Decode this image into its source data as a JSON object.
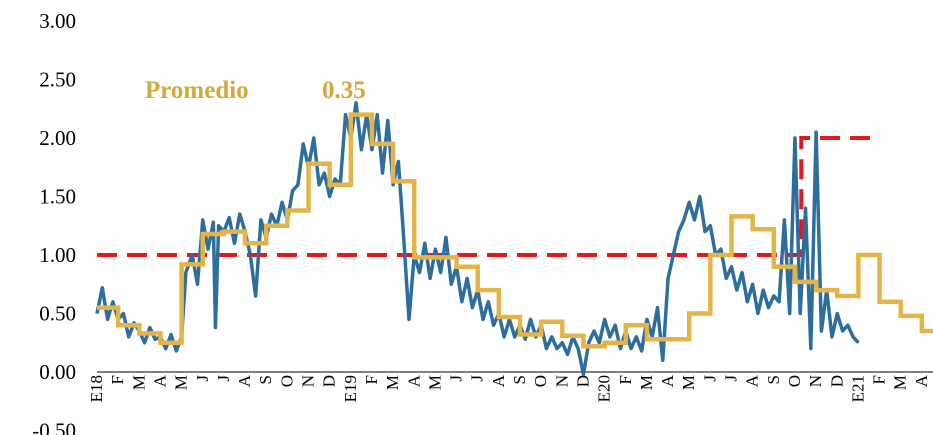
{
  "chart_data": {
    "type": "line",
    "title": "",
    "xlabel": "",
    "ylabel": "",
    "ylim": [
      -0.5,
      3.0
    ],
    "yticks": [
      "-0.50",
      "0.00",
      "0.50",
      "1.00",
      "1.50",
      "2.00",
      "2.50",
      "3.00"
    ],
    "grid": false,
    "annotation": {
      "label": "Promedio",
      "value": "0.35",
      "color": "#D4A83A"
    },
    "colors": {
      "daily": "#2E6E9E",
      "monthly": "#E5B449",
      "threshold": "#E5191C"
    },
    "categories": [
      "E18",
      "F",
      "M",
      "A",
      "M",
      "J",
      "J",
      "A",
      "S",
      "O",
      "N",
      "D",
      "E19",
      "F",
      "M",
      "A",
      "M",
      "J",
      "J",
      "A",
      "S",
      "O",
      "N",
      "D",
      "E20",
      "F",
      "M",
      "A",
      "M",
      "J",
      "J",
      "A",
      "S",
      "O",
      "N",
      "D",
      "E21",
      "F",
      "M",
      "A"
    ],
    "series": [
      {
        "kind": "daily",
        "points": [
          [
            0.0,
            0.5
          ],
          [
            0.25,
            0.72
          ],
          [
            0.5,
            0.45
          ],
          [
            0.75,
            0.6
          ],
          [
            1.0,
            0.45
          ],
          [
            1.25,
            0.5
          ],
          [
            1.5,
            0.3
          ],
          [
            1.75,
            0.42
          ],
          [
            2.0,
            0.35
          ],
          [
            2.25,
            0.25
          ],
          [
            2.5,
            0.38
          ],
          [
            2.75,
            0.28
          ],
          [
            3.0,
            0.3
          ],
          [
            3.25,
            0.2
          ],
          [
            3.5,
            0.32
          ],
          [
            3.75,
            0.18
          ],
          [
            4.0,
            0.3
          ],
          [
            4.2,
            0.85
          ],
          [
            4.5,
            1.0
          ],
          [
            4.75,
            0.75
          ],
          [
            5.0,
            1.3
          ],
          [
            5.25,
            1.05
          ],
          [
            5.5,
            1.28
          ],
          [
            5.6,
            0.38
          ],
          [
            5.75,
            1.25
          ],
          [
            6.0,
            1.2
          ],
          [
            6.25,
            1.32
          ],
          [
            6.5,
            1.1
          ],
          [
            6.75,
            1.35
          ],
          [
            7.0,
            1.2
          ],
          [
            7.25,
            1.0
          ],
          [
            7.5,
            0.65
          ],
          [
            7.75,
            1.3
          ],
          [
            8.0,
            1.15
          ],
          [
            8.25,
            1.35
          ],
          [
            8.5,
            1.25
          ],
          [
            8.75,
            1.45
          ],
          [
            9.0,
            1.3
          ],
          [
            9.25,
            1.55
          ],
          [
            9.5,
            1.6
          ],
          [
            9.75,
            1.95
          ],
          [
            10.0,
            1.75
          ],
          [
            10.25,
            2.0
          ],
          [
            10.5,
            1.6
          ],
          [
            10.75,
            1.7
          ],
          [
            11.0,
            1.5
          ],
          [
            11.25,
            1.65
          ],
          [
            11.5,
            1.6
          ],
          [
            11.75,
            2.2
          ],
          [
            12.0,
            2.0
          ],
          [
            12.25,
            2.3
          ],
          [
            12.5,
            1.9
          ],
          [
            12.75,
            2.2
          ],
          [
            13.0,
            1.9
          ],
          [
            13.25,
            2.2
          ],
          [
            13.5,
            1.7
          ],
          [
            13.75,
            2.15
          ],
          [
            14.0,
            1.6
          ],
          [
            14.25,
            1.8
          ],
          [
            14.5,
            1.15
          ],
          [
            14.75,
            0.45
          ],
          [
            15.0,
            1.0
          ],
          [
            15.25,
            0.85
          ],
          [
            15.5,
            1.1
          ],
          [
            15.75,
            0.8
          ],
          [
            16.0,
            1.05
          ],
          [
            16.25,
            0.85
          ],
          [
            16.5,
            1.15
          ],
          [
            16.75,
            0.75
          ],
          [
            17.0,
            0.9
          ],
          [
            17.25,
            0.6
          ],
          [
            17.5,
            0.8
          ],
          [
            17.75,
            0.55
          ],
          [
            18.0,
            0.7
          ],
          [
            18.25,
            0.45
          ],
          [
            18.5,
            0.6
          ],
          [
            18.75,
            0.4
          ],
          [
            19.0,
            0.5
          ],
          [
            19.25,
            0.3
          ],
          [
            19.5,
            0.45
          ],
          [
            19.75,
            0.3
          ],
          [
            20.0,
            0.4
          ],
          [
            20.25,
            0.28
          ],
          [
            20.5,
            0.45
          ],
          [
            20.75,
            0.3
          ],
          [
            21.0,
            0.4
          ],
          [
            21.25,
            0.2
          ],
          [
            21.5,
            0.3
          ],
          [
            21.75,
            0.2
          ],
          [
            22.0,
            0.25
          ],
          [
            22.25,
            0.15
          ],
          [
            22.5,
            0.3
          ],
          [
            22.75,
            0.2
          ],
          [
            23.0,
            -0.02
          ],
          [
            23.25,
            0.25
          ],
          [
            23.5,
            0.35
          ],
          [
            23.75,
            0.25
          ],
          [
            24.0,
            0.45
          ],
          [
            24.25,
            0.3
          ],
          [
            24.5,
            0.4
          ],
          [
            24.75,
            0.2
          ],
          [
            25.0,
            0.35
          ],
          [
            25.25,
            0.2
          ],
          [
            25.5,
            0.3
          ],
          [
            25.75,
            0.18
          ],
          [
            26.0,
            0.45
          ],
          [
            26.25,
            0.3
          ],
          [
            26.5,
            0.55
          ],
          [
            26.75,
            0.1
          ],
          [
            27.0,
            0.8
          ],
          [
            27.25,
            1.0
          ],
          [
            27.5,
            1.2
          ],
          [
            27.75,
            1.3
          ],
          [
            28.0,
            1.45
          ],
          [
            28.25,
            1.3
          ],
          [
            28.5,
            1.5
          ],
          [
            28.75,
            1.2
          ],
          [
            29.0,
            1.25
          ],
          [
            29.25,
            1.0
          ],
          [
            29.5,
            1.05
          ],
          [
            29.75,
            0.8
          ],
          [
            30.0,
            0.9
          ],
          [
            30.25,
            0.7
          ],
          [
            30.5,
            0.85
          ],
          [
            30.75,
            0.6
          ],
          [
            31.0,
            0.75
          ],
          [
            31.25,
            0.5
          ],
          [
            31.5,
            0.7
          ],
          [
            31.75,
            0.55
          ],
          [
            32.0,
            0.65
          ],
          [
            32.25,
            0.6
          ],
          [
            32.5,
            1.3
          ],
          [
            32.75,
            0.5
          ],
          [
            33.0,
            2.0
          ],
          [
            33.25,
            0.5
          ],
          [
            33.5,
            1.4
          ],
          [
            33.75,
            0.2
          ],
          [
            34.0,
            2.05
          ],
          [
            34.25,
            0.35
          ],
          [
            34.5,
            0.7
          ],
          [
            34.75,
            0.3
          ],
          [
            35.0,
            0.5
          ],
          [
            35.25,
            0.35
          ],
          [
            35.5,
            0.4
          ],
          [
            35.75,
            0.3
          ],
          [
            36.0,
            0.25
          ]
        ]
      },
      {
        "kind": "monthly",
        "values": [
          0.55,
          0.4,
          0.33,
          0.25,
          0.92,
          1.18,
          1.2,
          1.1,
          1.25,
          1.38,
          1.78,
          1.6,
          2.2,
          1.95,
          1.63,
          0.98,
          0.98,
          0.9,
          0.7,
          0.47,
          0.32,
          0.43,
          0.31,
          0.22,
          0.25,
          0.4,
          0.28,
          0.28,
          0.5,
          1.0,
          1.33,
          1.22,
          0.9,
          0.77,
          0.7,
          0.65,
          1.0,
          0.6,
          0.48,
          0.35
        ]
      },
      {
        "kind": "threshold",
        "points": [
          [
            0.0,
            1.0
          ],
          [
            33.3,
            1.0
          ],
          [
            33.3,
            2.0
          ],
          [
            37.0,
            2.0
          ]
        ]
      }
    ]
  }
}
